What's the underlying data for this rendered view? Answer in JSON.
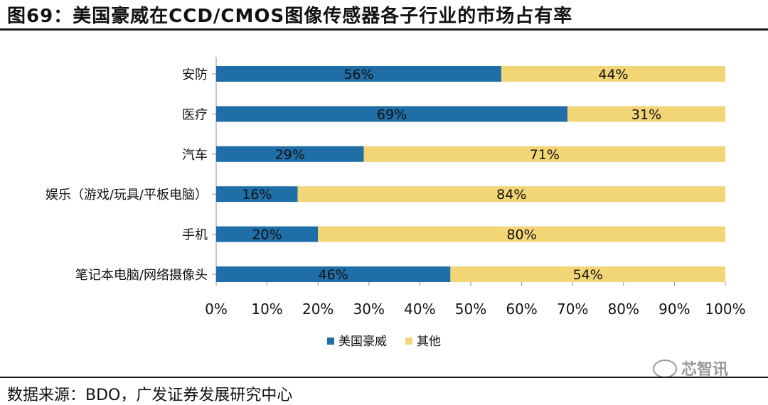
{
  "page": {
    "title": "图69：美国豪威在CCD/CMOS图像传感器各子行业的市场占有率",
    "source": "数据来源：BDO，广发证券发展研究中心",
    "watermark": "芯智讯"
  },
  "chart_data": {
    "type": "bar",
    "orientation": "horizontal",
    "stacked": true,
    "percent": true,
    "categories": [
      "安防",
      "医疗",
      "汽车",
      "娱乐（游戏/玩具/平板电脑）",
      "手机",
      "笔记本电脑/网络摄像头"
    ],
    "series": [
      {
        "name": "美国豪威",
        "values": [
          56,
          69,
          29,
          16,
          20,
          46
        ],
        "color": "#1f6ea8",
        "labels": [
          "56%",
          "69%",
          "29%",
          "16%",
          "20%",
          "46%"
        ]
      },
      {
        "name": "其他",
        "values": [
          44,
          31,
          71,
          84,
          80,
          54
        ],
        "color": "#f2d575",
        "labels": [
          "44%",
          "31%",
          "71%",
          "84%",
          "80%",
          "54%"
        ]
      }
    ],
    "xlim": [
      0,
      100
    ],
    "xticks": [
      "0%",
      "10%",
      "20%",
      "30%",
      "40%",
      "50%",
      "60%",
      "70%",
      "80%",
      "90%",
      "100%"
    ],
    "grid": false,
    "legend_position": "bottom"
  }
}
